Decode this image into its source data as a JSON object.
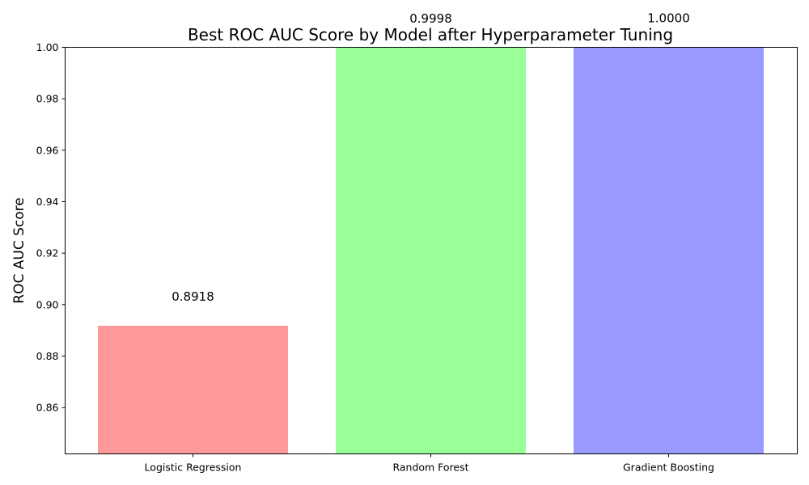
{
  "chart_data": {
    "type": "bar",
    "title": "Best ROC AUC Score by Model after Hyperparameter Tuning",
    "xlabel": "",
    "ylabel": "ROC AUC Score",
    "categories": [
      "Logistic Regression",
      "Random Forest",
      "Gradient Boosting"
    ],
    "values": [
      0.8918,
      0.9998,
      1.0
    ],
    "value_labels": [
      "0.8918",
      "0.9998",
      "1.0000"
    ],
    "colors": [
      "#ff9999",
      "#99ff99",
      "#9999ff"
    ],
    "ylim": [
      0.842,
      1.0
    ],
    "yticks": [
      0.86,
      0.88,
      0.9,
      0.92,
      0.94,
      0.96,
      0.98,
      1.0
    ],
    "ytick_labels": [
      "0.86",
      "0.88",
      "0.90",
      "0.92",
      "0.94",
      "0.96",
      "0.98",
      "1.00"
    ],
    "grid": false,
    "legend": "none"
  }
}
